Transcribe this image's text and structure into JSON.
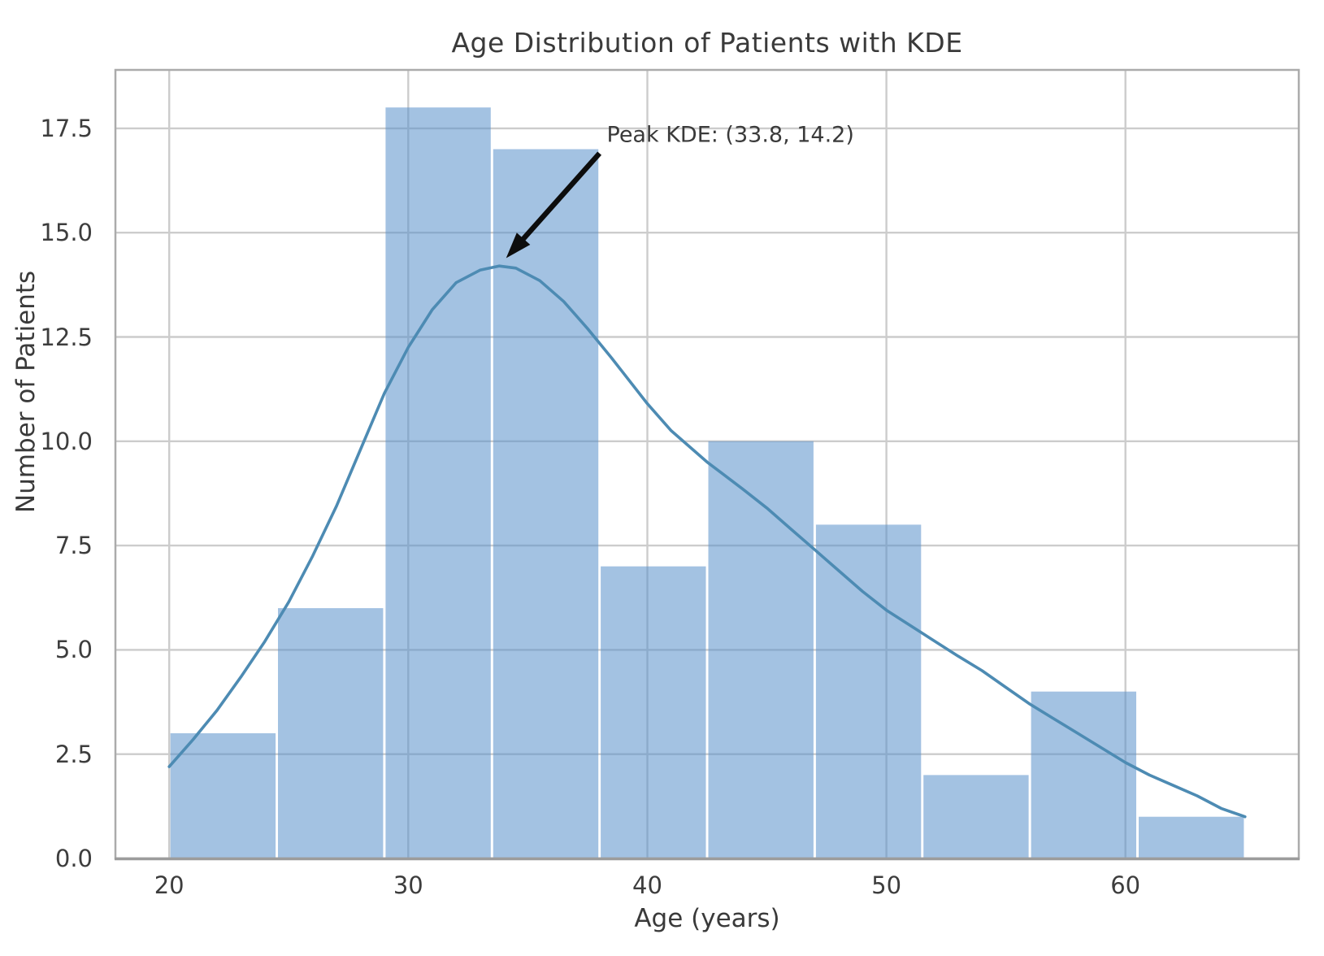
{
  "chart_data": {
    "type": "bar",
    "subtype": "histogram_with_kde",
    "title": "Age Distribution of Patients with KDE",
    "xlabel": "Age (years)",
    "ylabel": "Number of Patients",
    "xlim": [
      17.75,
      67.25
    ],
    "ylim": [
      0,
      18.9
    ],
    "grid": true,
    "legend": false,
    "x_ticks": [
      20,
      30,
      40,
      50,
      60
    ],
    "x_tick_labels": [
      "20",
      "30",
      "40",
      "50",
      "60"
    ],
    "y_ticks": [
      0,
      2.5,
      5,
      7.5,
      10,
      12.5,
      15,
      17.5
    ],
    "y_tick_labels": [
      "0.0",
      "2.5",
      "5.0",
      "7.5",
      "10.0",
      "12.5",
      "15.0",
      "17.5"
    ],
    "bin_edges": [
      20,
      24.5,
      29,
      33.5,
      38,
      42.5,
      47,
      51.5,
      56,
      60.5,
      65
    ],
    "counts": [
      3,
      6,
      18,
      17,
      7,
      10,
      8,
      2,
      4,
      1
    ],
    "kde_points": [
      [
        20,
        2.2
      ],
      [
        21,
        2.85
      ],
      [
        22,
        3.55
      ],
      [
        23,
        4.35
      ],
      [
        24,
        5.2
      ],
      [
        25,
        6.15
      ],
      [
        26,
        7.25
      ],
      [
        27,
        8.45
      ],
      [
        28,
        9.8
      ],
      [
        29,
        11.15
      ],
      [
        30,
        12.25
      ],
      [
        31,
        13.15
      ],
      [
        32,
        13.8
      ],
      [
        33,
        14.1
      ],
      [
        33.8,
        14.2
      ],
      [
        34.5,
        14.15
      ],
      [
        35.5,
        13.85
      ],
      [
        36.5,
        13.35
      ],
      [
        37.5,
        12.7
      ],
      [
        38.5,
        12.0
      ],
      [
        40,
        10.9
      ],
      [
        41,
        10.25
      ],
      [
        42.5,
        9.5
      ],
      [
        44,
        8.85
      ],
      [
        45,
        8.4
      ],
      [
        46,
        7.9
      ],
      [
        47,
        7.4
      ],
      [
        48,
        6.9
      ],
      [
        49,
        6.4
      ],
      [
        50,
        5.95
      ],
      [
        51.5,
        5.4
      ],
      [
        53,
        4.85
      ],
      [
        54,
        4.5
      ],
      [
        55,
        4.1
      ],
      [
        56,
        3.7
      ],
      [
        57,
        3.35
      ],
      [
        58,
        3.0
      ],
      [
        59,
        2.65
      ],
      [
        60,
        2.3
      ],
      [
        61,
        2.0
      ],
      [
        62,
        1.75
      ],
      [
        63,
        1.5
      ],
      [
        64,
        1.2
      ],
      [
        65,
        1.0
      ]
    ],
    "annotation": {
      "text": "Peak KDE: (33.8, 14.2)",
      "xy": [
        33.8,
        14.2
      ],
      "text_anchor": [
        38.3,
        17.35
      ],
      "arrow_tail": [
        38.0,
        16.9
      ],
      "shrink": 0.07
    },
    "colors": {
      "bar_fill_rgba": "rgba(88,144,202,0.55)",
      "kde_line": "#4d8bb3",
      "grid_line": "#cccccc",
      "spine": "#ababab",
      "bottom_spine": "#9c9c9c",
      "text": "#3a3a3a",
      "arrow": "#0d0d0d",
      "background": "#ffffff"
    }
  }
}
